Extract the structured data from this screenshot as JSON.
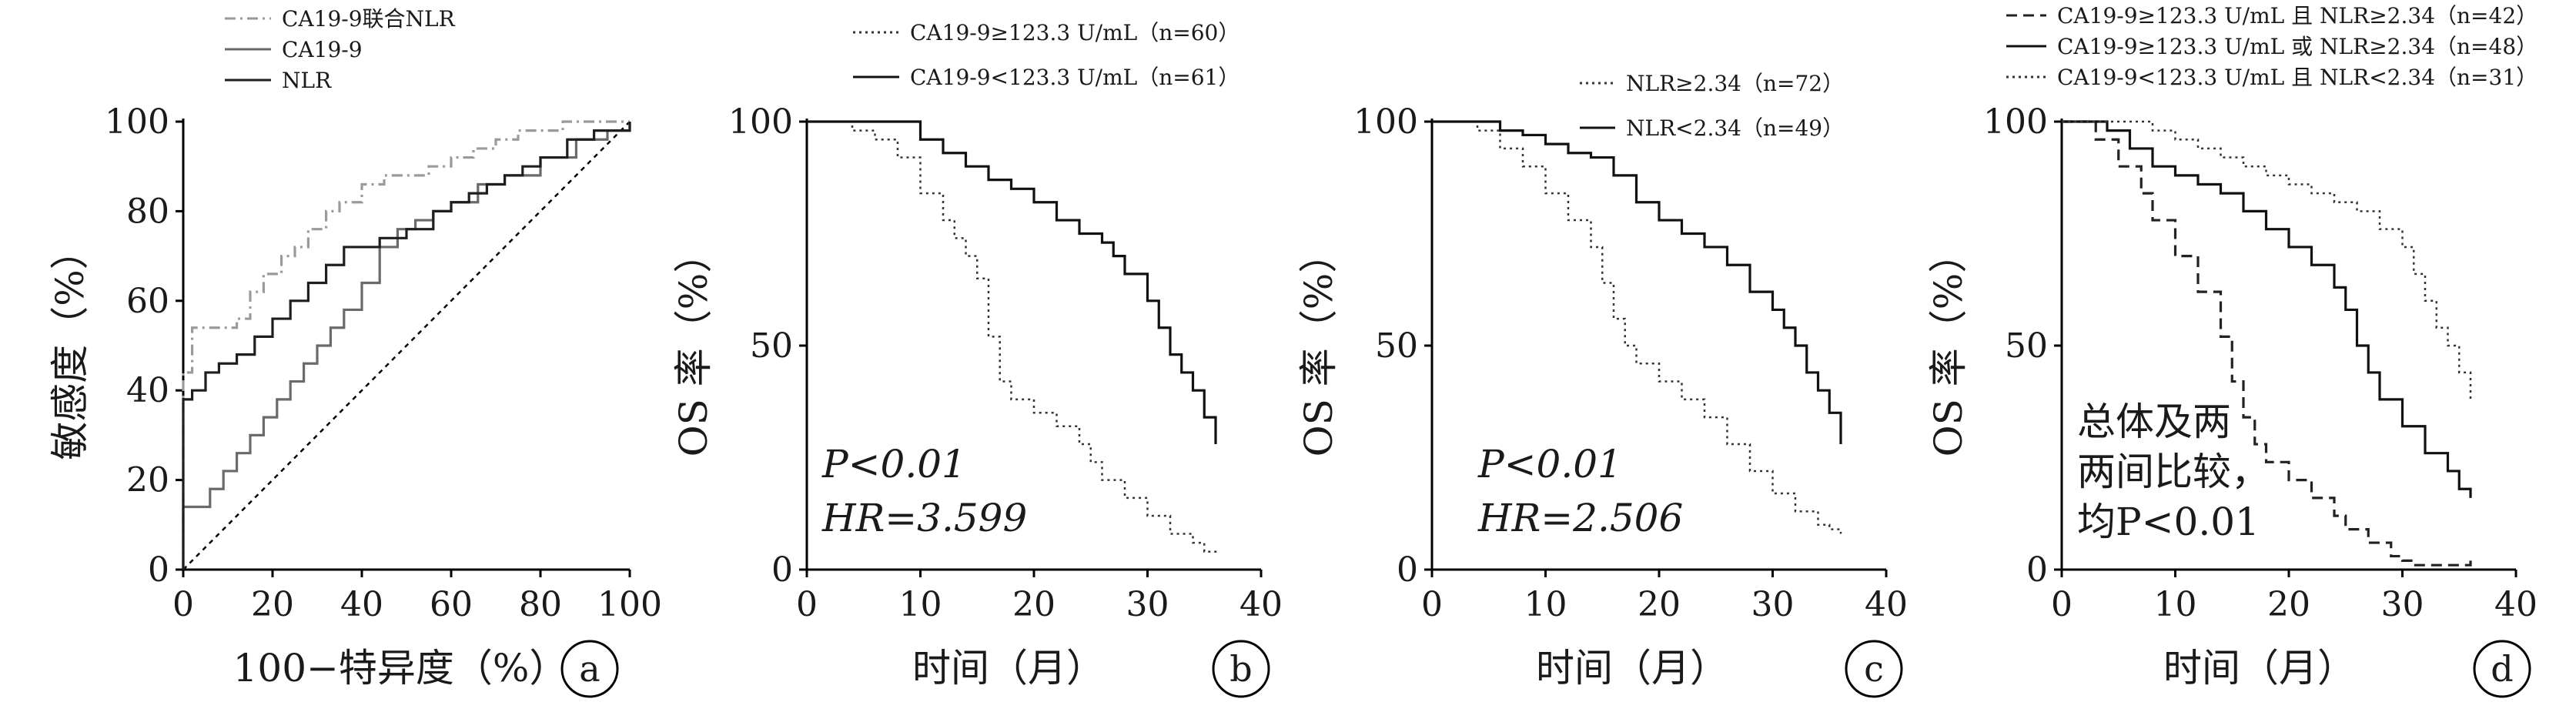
{
  "chart_data": [
    {
      "type": "line",
      "panel_label": "a",
      "xlabel": "100−特异度（%）",
      "ylabel": "敏感度（%）",
      "xlim": [
        0,
        100
      ],
      "ylim": [
        0,
        100
      ],
      "xticks": [
        "0",
        "20",
        "40",
        "60",
        "80",
        "100"
      ],
      "yticks": [
        "0",
        "20",
        "40",
        "60",
        "80",
        "100"
      ],
      "reference_line": "diagonal",
      "legend_position": "top-left, above plot",
      "series": [
        {
          "name": "CA19-9联合NLR",
          "style": "dash-dot",
          "color": "#9a9a9a",
          "x": [
            0,
            0,
            2,
            2,
            5,
            8,
            12,
            15,
            18,
            22,
            25,
            28,
            32,
            35,
            40,
            45,
            50,
            55,
            60,
            65,
            70,
            75,
            80,
            85,
            100
          ],
          "y": [
            0,
            44,
            50,
            54,
            54,
            54,
            56,
            62,
            66,
            70,
            72,
            76,
            80,
            82,
            86,
            88,
            88,
            90,
            92,
            94,
            96,
            98,
            98,
            100,
            100
          ]
        },
        {
          "name": "CA19-9",
          "style": "solid",
          "color": "#6a6a6a",
          "x": [
            0,
            0,
            3,
            6,
            9,
            12,
            15,
            18,
            21,
            24,
            27,
            30,
            33,
            36,
            40,
            44,
            48,
            52,
            56,
            60,
            66,
            72,
            80,
            88,
            95,
            100
          ],
          "y": [
            0,
            14,
            14,
            18,
            22,
            26,
            30,
            34,
            38,
            42,
            46,
            50,
            54,
            58,
            64,
            72,
            76,
            78,
            80,
            82,
            86,
            88,
            92,
            96,
            98,
            100
          ]
        },
        {
          "name": "NLR",
          "style": "solid",
          "color": "#1e1e1e",
          "x": [
            0,
            0,
            2,
            5,
            8,
            12,
            16,
            20,
            24,
            28,
            32,
            36,
            40,
            44,
            50,
            56,
            60,
            64,
            68,
            72,
            76,
            80,
            86,
            92,
            100
          ],
          "y": [
            0,
            38,
            40,
            44,
            46,
            48,
            52,
            56,
            60,
            64,
            68,
            72,
            72,
            74,
            76,
            80,
            82,
            84,
            86,
            88,
            90,
            92,
            96,
            98,
            100
          ]
        }
      ]
    },
    {
      "type": "line",
      "panel_label": "b",
      "xlabel": "时间（月）",
      "ylabel": "OS 率（%）",
      "xlim": [
        0,
        40
      ],
      "ylim": [
        0,
        100
      ],
      "xticks": [
        "0",
        "10",
        "20",
        "30",
        "40"
      ],
      "yticks": [
        "0",
        "50",
        "100"
      ],
      "annotation_lines": [
        "P<0.01",
        "HR=3.599"
      ],
      "legend_position": "top, above plot",
      "series": [
        {
          "name": "CA19-9≥123.3 U/mL（n=60）",
          "style": "dotted",
          "color": "#333333",
          "x": [
            0,
            4,
            6,
            8,
            10,
            12,
            13,
            14,
            15,
            16,
            17,
            18,
            20,
            22,
            24,
            25,
            26,
            28,
            30,
            32,
            34,
            35,
            36
          ],
          "y": [
            100,
            98,
            96,
            92,
            84,
            78,
            74,
            70,
            65,
            52,
            42,
            38,
            35,
            32,
            28,
            24,
            20,
            16,
            12,
            8,
            6,
            4,
            3
          ]
        },
        {
          "name": "CA19-9<123.3 U/mL（n=61）",
          "style": "solid",
          "color": "#111111",
          "x": [
            0,
            8,
            10,
            12,
            14,
            16,
            18,
            20,
            22,
            24,
            26,
            27,
            28,
            30,
            31,
            32,
            33,
            34,
            35,
            36
          ],
          "y": [
            100,
            100,
            96,
            93,
            90,
            87,
            85,
            82,
            78,
            75,
            73,
            70,
            66,
            60,
            54,
            48,
            44,
            40,
            34,
            28
          ]
        }
      ]
    },
    {
      "type": "line",
      "panel_label": "c",
      "xlabel": "时间（月）",
      "ylabel": "OS 率（%）",
      "xlim": [
        0,
        40
      ],
      "ylim": [
        0,
        100
      ],
      "xticks": [
        "0",
        "10",
        "20",
        "30",
        "40"
      ],
      "yticks": [
        "0",
        "50",
        "100"
      ],
      "annotation_lines": [
        "P<0.01",
        "HR=2.506"
      ],
      "legend_position": "top-right, above plot",
      "series": [
        {
          "name": "NLR≥2.34（n=72）",
          "style": "dotted",
          "color": "#333333",
          "x": [
            0,
            4,
            6,
            8,
            10,
            12,
            14,
            15,
            16,
            17,
            18,
            20,
            22,
            24,
            26,
            28,
            30,
            32,
            34,
            35,
            36
          ],
          "y": [
            100,
            98,
            94,
            90,
            84,
            78,
            72,
            64,
            56,
            50,
            46,
            42,
            38,
            34,
            28,
            22,
            17,
            13,
            10,
            9,
            8
          ]
        },
        {
          "name": "NLR<2.34（n=49）",
          "style": "solid",
          "color": "#111111",
          "x": [
            0,
            4,
            6,
            8,
            10,
            12,
            14,
            16,
            18,
            20,
            22,
            24,
            26,
            28,
            30,
            31,
            32,
            33,
            34,
            35,
            36
          ],
          "y": [
            100,
            100,
            98,
            97,
            95,
            93,
            92,
            88,
            82,
            78,
            75,
            72,
            68,
            62,
            58,
            54,
            50,
            44,
            40,
            35,
            28
          ]
        }
      ]
    },
    {
      "type": "line",
      "panel_label": "d",
      "xlabel": "时间（月）",
      "ylabel": "OS 率（%）",
      "xlim": [
        0,
        40
      ],
      "ylim": [
        0,
        100
      ],
      "xticks": [
        "0",
        "10",
        "20",
        "30",
        "40"
      ],
      "yticks": [
        "0",
        "50",
        "100"
      ],
      "annotation_lines": [
        "总体及两",
        "两间比较，",
        "均P<0.01"
      ],
      "legend_position": "top, above plot",
      "series": [
        {
          "name": "CA19-9≥123.3 U/mL 且 NLR≥2.34（n=42）",
          "style": "dashed",
          "color": "#222222",
          "x": [
            0,
            3,
            5,
            7,
            8,
            10,
            12,
            14,
            15,
            16,
            17,
            18,
            20,
            22,
            24,
            25,
            27,
            29,
            30,
            31,
            35,
            36
          ],
          "y": [
            100,
            96,
            90,
            84,
            78,
            70,
            62,
            52,
            42,
            34,
            28,
            24,
            20,
            16,
            12,
            9,
            6,
            3,
            2,
            1,
            1,
            2
          ]
        },
        {
          "name": "CA19-9≥123.3 U/mL 或 NLR≥2.34（n=48）",
          "style": "solid",
          "color": "#111111",
          "x": [
            0,
            4,
            6,
            8,
            10,
            12,
            14,
            16,
            18,
            20,
            22,
            24,
            25,
            26,
            27,
            28,
            30,
            32,
            34,
            35,
            36
          ],
          "y": [
            100,
            98,
            94,
            90,
            88,
            86,
            84,
            80,
            76,
            72,
            68,
            63,
            58,
            50,
            44,
            38,
            32,
            26,
            22,
            18,
            16
          ]
        },
        {
          "name": "CA19-9<123.3 U/mL 且 NLR<2.34（n=31）",
          "style": "dotted",
          "color": "#333333",
          "x": [
            0,
            6,
            8,
            10,
            12,
            14,
            16,
            18,
            20,
            22,
            24,
            26,
            28,
            30,
            31,
            32,
            33,
            34,
            35,
            36
          ],
          "y": [
            100,
            100,
            98,
            96,
            94,
            92,
            90,
            88,
            86,
            84,
            82,
            80,
            76,
            72,
            66,
            60,
            54,
            50,
            44,
            38
          ]
        }
      ]
    }
  ]
}
